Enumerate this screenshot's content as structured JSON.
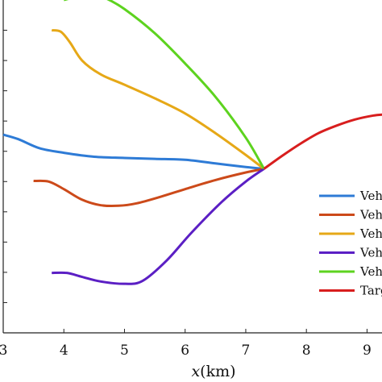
{
  "chart_data": {
    "type": "line",
    "xlabel_var": "x",
    "xlabel_unit": "(km)",
    "xlim": [
      3,
      9.3
    ],
    "ylim": [
      0,
      11
    ],
    "x_ticks": [
      3,
      4,
      5,
      6,
      7,
      8,
      9
    ],
    "x_tick_labels": [
      "3",
      "4",
      "5",
      "6",
      "7",
      "8",
      "9"
    ],
    "y_ticks": [
      1,
      2,
      3,
      4,
      5,
      6,
      7,
      8,
      9,
      10
    ],
    "grid": false,
    "legend_position": "right",
    "series": [
      {
        "name": "Veh",
        "color": "#2E7BD6",
        "points": [
          [
            3,
            6.55
          ],
          [
            3.25,
            6.4
          ],
          [
            3.6,
            6.1
          ],
          [
            4.0,
            5.95
          ],
          [
            4.5,
            5.82
          ],
          [
            5.0,
            5.78
          ],
          [
            5.5,
            5.75
          ],
          [
            6.0,
            5.72
          ],
          [
            6.5,
            5.6
          ],
          [
            7.0,
            5.48
          ],
          [
            7.3,
            5.42
          ]
        ]
      },
      {
        "name": "Veh",
        "color": "#CC4A1A",
        "points": [
          [
            3.5,
            5.02
          ],
          [
            3.75,
            5.0
          ],
          [
            4.0,
            4.75
          ],
          [
            4.3,
            4.4
          ],
          [
            4.6,
            4.22
          ],
          [
            4.9,
            4.2
          ],
          [
            5.2,
            4.28
          ],
          [
            5.6,
            4.5
          ],
          [
            6.0,
            4.75
          ],
          [
            6.5,
            5.05
          ],
          [
            7.0,
            5.3
          ],
          [
            7.3,
            5.42
          ]
        ]
      },
      {
        "name": "Veh",
        "color": "#E6A817",
        "points": [
          [
            3.8,
            10.0
          ],
          [
            3.95,
            9.95
          ],
          [
            4.1,
            9.6
          ],
          [
            4.3,
            9.0
          ],
          [
            4.6,
            8.55
          ],
          [
            5.0,
            8.2
          ],
          [
            5.5,
            7.75
          ],
          [
            6.0,
            7.25
          ],
          [
            6.5,
            6.6
          ],
          [
            7.0,
            5.88
          ],
          [
            7.3,
            5.42
          ]
        ]
      },
      {
        "name": "Veh",
        "color": "#5B1FC4",
        "points": [
          [
            3.8,
            1.98
          ],
          [
            4.05,
            1.98
          ],
          [
            4.3,
            1.85
          ],
          [
            4.6,
            1.7
          ],
          [
            5.0,
            1.62
          ],
          [
            5.3,
            1.72
          ],
          [
            5.7,
            2.4
          ],
          [
            6.1,
            3.3
          ],
          [
            6.6,
            4.32
          ],
          [
            7.0,
            5.0
          ],
          [
            7.3,
            5.42
          ]
        ]
      },
      {
        "name": "Veh",
        "color": "#5DD31F",
        "points": [
          [
            4.0,
            11.0
          ],
          [
            4.25,
            11.12
          ],
          [
            4.5,
            11.18
          ],
          [
            4.7,
            11.05
          ],
          [
            5.0,
            10.7
          ],
          [
            5.5,
            9.9
          ],
          [
            6.0,
            8.9
          ],
          [
            6.5,
            7.8
          ],
          [
            7.0,
            6.45
          ],
          [
            7.3,
            5.42
          ]
        ]
      },
      {
        "name": "Targ",
        "color": "#D81E1E",
        "points": [
          [
            7.3,
            5.42
          ],
          [
            7.6,
            5.85
          ],
          [
            7.9,
            6.25
          ],
          [
            8.2,
            6.6
          ],
          [
            8.5,
            6.85
          ],
          [
            8.8,
            7.05
          ],
          [
            9.1,
            7.18
          ],
          [
            9.3,
            7.22
          ]
        ]
      }
    ]
  }
}
